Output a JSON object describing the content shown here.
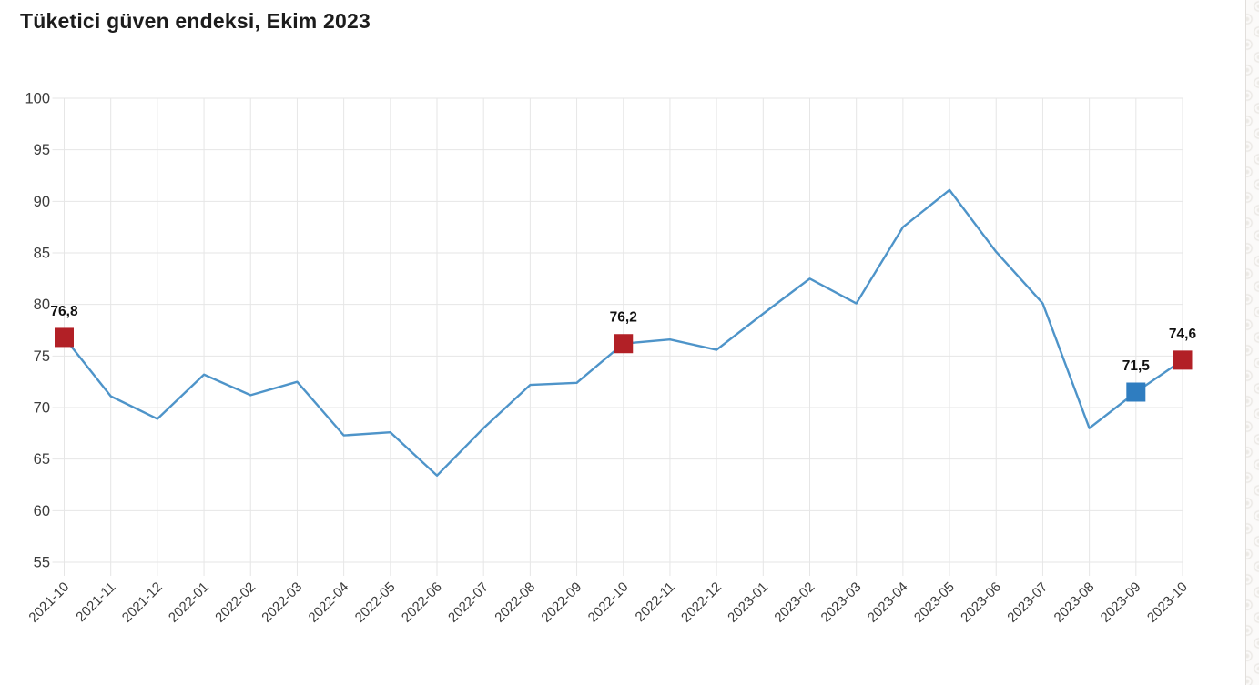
{
  "page": {
    "title": "Tüketici güven endeksi, Ekim 2023"
  },
  "chart_data": {
    "type": "line",
    "title": "Tüketici güven endeksi, Ekim 2023",
    "x": [
      "2021-10",
      "2021-11",
      "2021-12",
      "2022-01",
      "2022-02",
      "2022-03",
      "2022-04",
      "2022-05",
      "2022-06",
      "2022-07",
      "2022-08",
      "2022-09",
      "2022-10",
      "2022-11",
      "2022-12",
      "2023-01",
      "2023-02",
      "2023-03",
      "2023-04",
      "2023-05",
      "2023-06",
      "2023-07",
      "2023-08",
      "2023-09",
      "2023-10"
    ],
    "series": [
      {
        "name": "Tüketici güven endeksi",
        "values": [
          76.8,
          71.1,
          68.9,
          73.2,
          71.2,
          72.5,
          67.3,
          67.6,
          63.4,
          68.0,
          72.2,
          72.4,
          76.2,
          76.6,
          75.6,
          79.1,
          82.5,
          80.1,
          87.5,
          91.1,
          85.1,
          80.1,
          68.0,
          71.5,
          74.6
        ]
      }
    ],
    "ylim": [
      55,
      100
    ],
    "ytick_step": 5,
    "ytick_labels": [
      "55",
      "60",
      "65",
      "70",
      "75",
      "80",
      "85",
      "90",
      "95",
      "100"
    ],
    "grid": true,
    "legend": "none",
    "line_color": "#4e94c9",
    "grid_color": "#e6e6e6",
    "tick_label_color": "#3c3c3c",
    "annotation_color": "#111111",
    "highlighted_points": [
      {
        "x": "2021-10",
        "value": 76.8,
        "label": "76,8",
        "color": "#b22026"
      },
      {
        "x": "2022-10",
        "value": 76.2,
        "label": "76,2",
        "color": "#b22026"
      },
      {
        "x": "2023-09",
        "value": 71.5,
        "label": "71,5",
        "color": "#2f7dc0"
      },
      {
        "x": "2023-10",
        "value": 74.6,
        "label": "74,6",
        "color": "#b22026"
      }
    ]
  }
}
